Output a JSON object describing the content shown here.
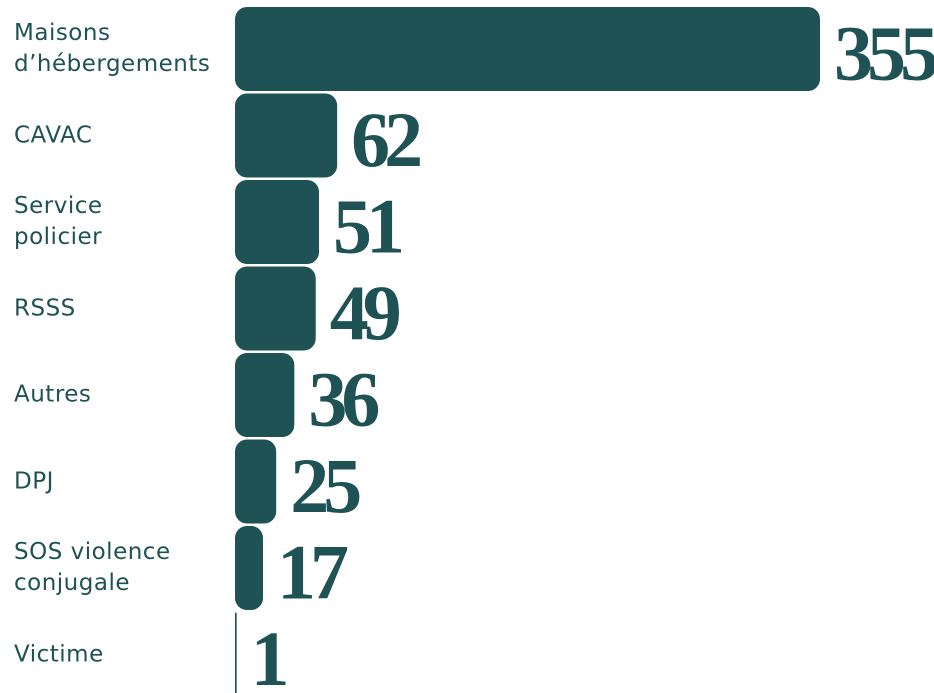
{
  "chart_data": {
    "type": "bar",
    "orientation": "horizontal",
    "categories": [
      "Maisons d’hébergements",
      "CAVAC",
      "Service policier",
      "RSSS",
      "Autres",
      "DPJ",
      "SOS violence conjugale",
      "Victime"
    ],
    "values": [
      355,
      62,
      51,
      49,
      36,
      25,
      17,
      1
    ],
    "color": "#1f5254"
  }
}
